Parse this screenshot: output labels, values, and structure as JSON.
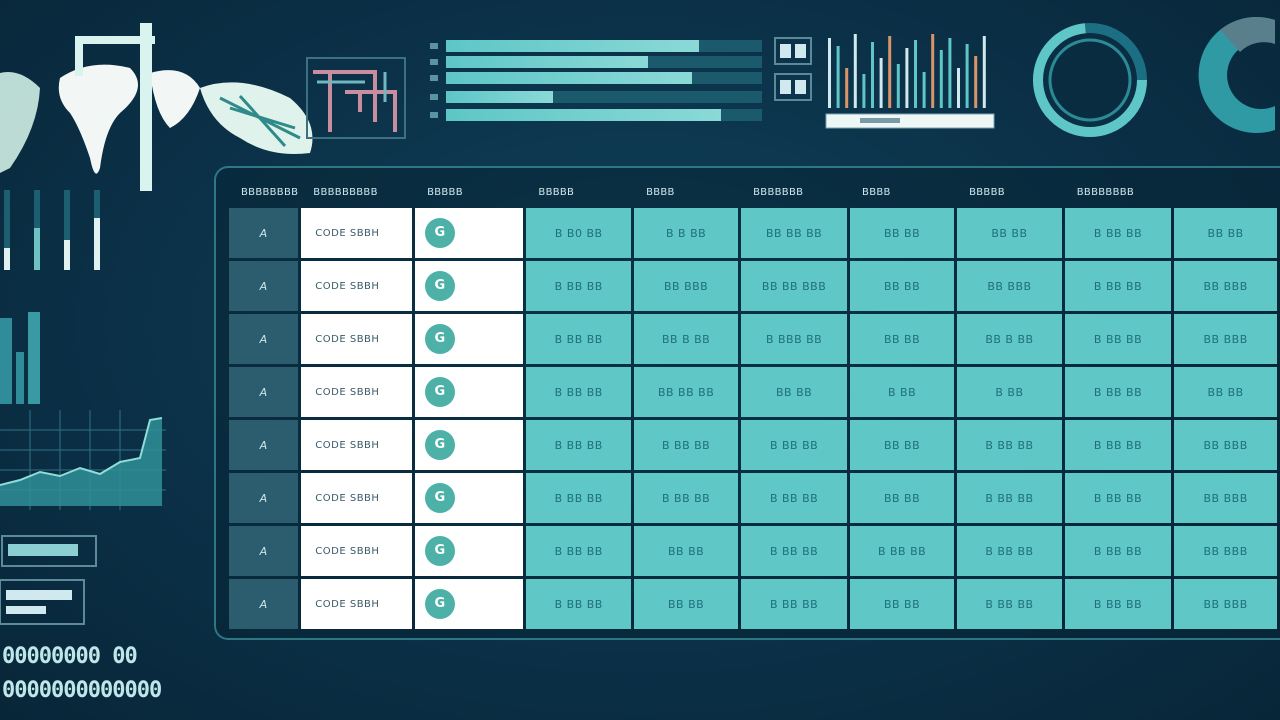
{
  "colors": {
    "background": "#0b3148",
    "accent_teal": "#5fc8c6",
    "panel_border": "#2e7786",
    "cell_white": "#ffffff",
    "index_cell": "#2c5d6e"
  },
  "bar_list": {
    "fills": [
      0.8,
      0.64,
      0.78,
      0.34,
      0.87
    ]
  },
  "table": {
    "headers": [
      "BBBBBBBB",
      "BBBBBBBBB",
      "BBBBB",
      "BBBBB",
      "BBBB",
      "BBBBBBB",
      "BBBB",
      "BBBBB",
      "BBBBBBBB"
    ],
    "rows": [
      {
        "idx": "A",
        "name": "CODE SBBH",
        "icon": "G",
        "values": [
          "B B0 BB",
          "B B BB",
          "BB BB BB",
          "BB BB",
          "BB BB",
          "B BB BB",
          "BB BB"
        ]
      },
      {
        "idx": "A",
        "name": "CODE SBBH",
        "icon": "G",
        "values": [
          "B BB BB",
          "BB BBB",
          "BB BB BBB",
          "BB BB",
          "BB BBB",
          "B BB BB",
          "BB BBB"
        ]
      },
      {
        "idx": "A",
        "name": "CODE SBBH",
        "icon": "G",
        "values": [
          "B BB BB",
          "BB B BB",
          "B BBB BB",
          "BB BB",
          "BB B BB",
          "B BB BB",
          "BB BBB"
        ]
      },
      {
        "idx": "A",
        "name": "CODE SBBH",
        "icon": "G",
        "values": [
          "B BB BB",
          "BB BB BB",
          "BB BB",
          "B BB",
          "B BB",
          "B BB BB",
          "BB BB"
        ]
      },
      {
        "idx": "A",
        "name": "CODE SBBH",
        "icon": "G",
        "values": [
          "B BB BB",
          "B BB BB",
          "B BB BB",
          "BB BB",
          "B BB BB",
          "B BB BB",
          "BB BBB"
        ]
      },
      {
        "idx": "A",
        "name": "CODE SBBH",
        "icon": "G",
        "values": [
          "B BB BB",
          "B BB BB",
          "B BB BB",
          "BB BB",
          "B BB BB",
          "B BB BB",
          "BB BBB"
        ]
      },
      {
        "idx": "A",
        "name": "CODE SBBH",
        "icon": "G",
        "values": [
          "B BB BB",
          "BB BB",
          "B BB BB",
          "B BB BB",
          "B BB BB",
          "B BB BB",
          "BB BBB"
        ]
      },
      {
        "idx": "A",
        "name": "CODE SBBH",
        "icon": "G",
        "values": [
          "B BB BB",
          "BB BB",
          "B BB BB",
          "BB BB",
          "B BB BB",
          "B BB BB",
          "BB BBB"
        ]
      }
    ]
  },
  "left_glyphs": {
    "row1": "00000000 00",
    "row2": "0000000000000"
  }
}
